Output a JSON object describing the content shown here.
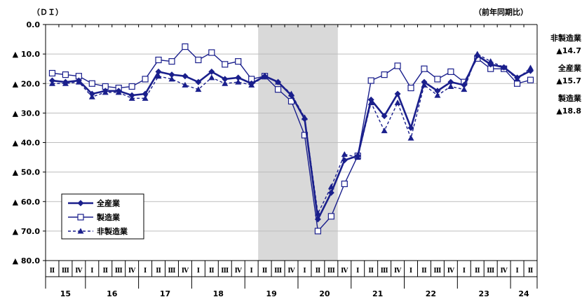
{
  "chart_data": {
    "type": "line",
    "yunit_label": "（ＤＩ）",
    "corner_label": "（前年同期比）",
    "ylim": [
      0,
      80
    ],
    "y_inverted": true,
    "y_ticks": [
      "0.0",
      "▲ 10.0",
      "▲ 20.0",
      "▲ 30.0",
      "▲ 40.0",
      "▲ 50.0",
      "▲ 60.0",
      "▲ 70.0",
      "▲ 80.0"
    ],
    "grid": true,
    "shaded_period": {
      "from_index": 16,
      "to_index": 21
    },
    "quarter_labels": [
      "Ⅱ",
      "Ⅲ",
      "Ⅳ",
      "Ⅰ",
      "Ⅱ",
      "Ⅲ",
      "Ⅳ",
      "Ⅰ",
      "Ⅱ",
      "Ⅲ",
      "Ⅳ",
      "Ⅰ",
      "Ⅱ",
      "Ⅲ",
      "Ⅳ",
      "Ⅰ",
      "Ⅱ",
      "Ⅲ",
      "Ⅳ",
      "Ⅰ",
      "Ⅱ",
      "Ⅲ",
      "Ⅳ",
      "Ⅰ",
      "Ⅱ",
      "Ⅲ",
      "Ⅳ",
      "Ⅰ",
      "Ⅱ",
      "Ⅲ",
      "Ⅳ",
      "Ⅰ",
      "Ⅱ",
      "Ⅲ",
      "Ⅳ",
      "Ⅰ",
      "Ⅱ"
    ],
    "years": [
      {
        "label": "15",
        "start": 0,
        "end": 2
      },
      {
        "label": "16",
        "start": 3,
        "end": 6
      },
      {
        "label": "17",
        "start": 7,
        "end": 10
      },
      {
        "label": "18",
        "start": 11,
        "end": 14
      },
      {
        "label": "19",
        "start": 15,
        "end": 18
      },
      {
        "label": "20",
        "start": 19,
        "end": 22
      },
      {
        "label": "21",
        "start": 23,
        "end": 26
      },
      {
        "label": "22",
        "start": 27,
        "end": 30
      },
      {
        "label": "23",
        "start": 31,
        "end": 34
      },
      {
        "label": "24",
        "start": 35,
        "end": 36
      }
    ],
    "series": [
      {
        "name": "全産業",
        "color": "#1a1f8c",
        "marker": "diamond",
        "dash": false,
        "values": [
          19,
          19.5,
          19,
          23.5,
          22.5,
          22.5,
          24,
          23.5,
          16,
          17,
          17.5,
          19.5,
          16,
          18.5,
          18,
          20,
          17.5,
          19.5,
          24,
          32,
          66,
          57,
          46,
          44.5,
          25.5,
          31,
          23.5,
          35,
          19.5,
          22.5,
          19.5,
          20.5,
          10.5,
          13.5,
          14.5,
          18,
          15.7
        ]
      },
      {
        "name": "製造業",
        "color": "#1a1f8c",
        "marker": "square",
        "dash": false,
        "values": [
          16.5,
          17,
          17.5,
          20,
          21,
          21.5,
          21,
          18.5,
          12,
          12.5,
          7.5,
          12,
          9.5,
          13.5,
          12.5,
          18.5,
          17.5,
          22,
          26,
          37.5,
          70,
          65,
          54,
          44.5,
          19,
          17,
          14,
          21.5,
          15,
          18.5,
          16,
          19.5,
          11.5,
          15,
          15,
          20,
          18.8
        ]
      },
      {
        "name": "非製造業",
        "color": "#1a1f8c",
        "marker": "triangle",
        "dash": true,
        "values": [
          20,
          20,
          19.5,
          24.5,
          23,
          23,
          25,
          25,
          17.5,
          18.5,
          20.5,
          22,
          18,
          20,
          19.5,
          20.5,
          17.5,
          19.5,
          23.5,
          31.5,
          64,
          55,
          44,
          45,
          26.5,
          36,
          26.5,
          38.5,
          20.5,
          24,
          21,
          22,
          10,
          12.5,
          14.5,
          18.5,
          14.7
        ]
      }
    ],
    "end_labels": [
      {
        "name": "非製造業",
        "value": "▲14.7"
      },
      {
        "name": "全産業",
        "value": "▲15.7"
      },
      {
        "name": "製造業",
        "value": "▲18.8"
      }
    ]
  }
}
